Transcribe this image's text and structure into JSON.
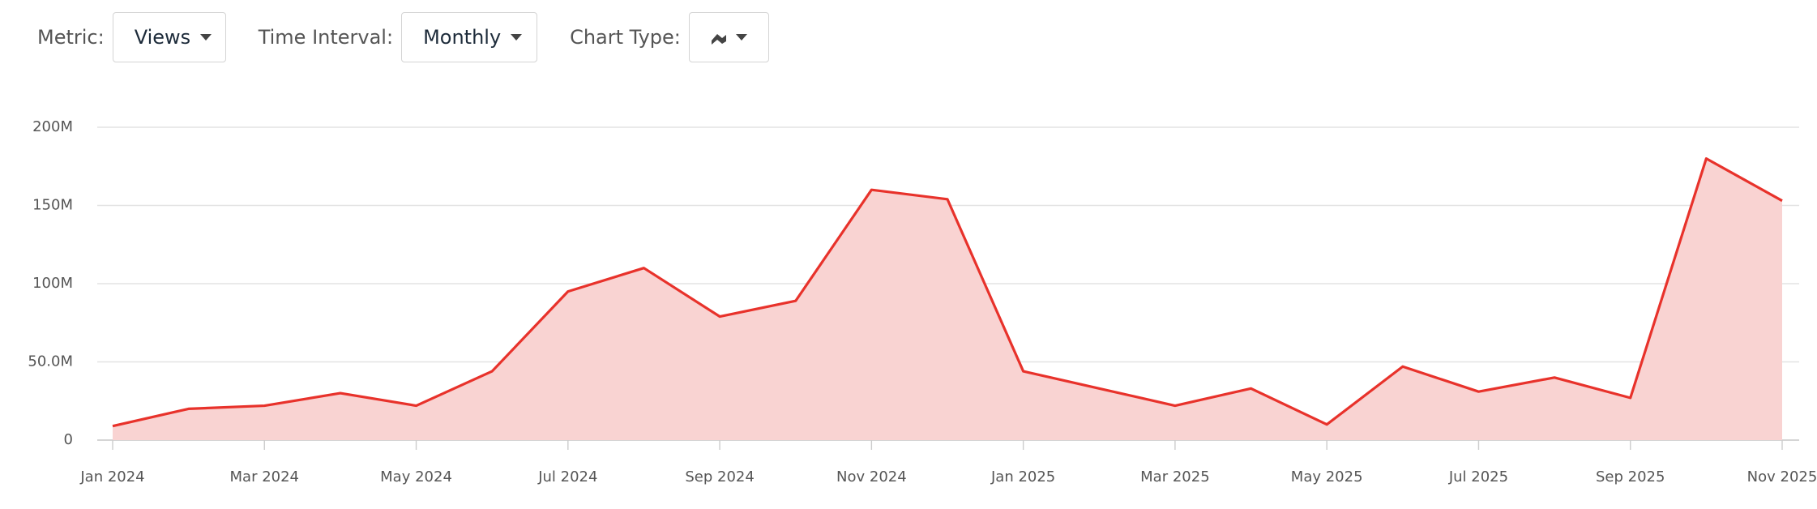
{
  "controls": [
    {
      "label": "Metric:",
      "value": "Views"
    },
    {
      "label": "Time Interval:",
      "value": "Monthly"
    },
    {
      "label": "Chart Type:"
    }
  ],
  "chart_data": {
    "type": "area",
    "categories": [
      "Jan 2024",
      null,
      "Mar 2024",
      null,
      "May 2024",
      null,
      "Jul 2024",
      null,
      "Sep 2024",
      null,
      "Nov 2024",
      null,
      "Jan 2025",
      null,
      "Mar 2025",
      null,
      "May 2025",
      null,
      "Jul 2025",
      null,
      "Sep 2025",
      null,
      "Nov 2025"
    ],
    "values": [
      9000000,
      20000000,
      22000000,
      30000000,
      22000000,
      44000000,
      95000000,
      110000000,
      79000000,
      89000000,
      160000000,
      154000000,
      44000000,
      33000000,
      22000000,
      33000000,
      10000000,
      47000000,
      31000000,
      40000000,
      27000000,
      180000000,
      153000000
    ],
    "color": "#e8322b",
    "fill": "#f9d3d2",
    "ylim": [
      0,
      200000000
    ],
    "yticks": [
      0,
      {
        "value": 50000000,
        "label": "50.0M"
      },
      {
        "value": 100000000,
        "label": "100M"
      },
      {
        "value": 150000000,
        "label": "150M"
      },
      {
        "value": 200000000,
        "label": "200M"
      }
    ],
    "grid": true
  }
}
